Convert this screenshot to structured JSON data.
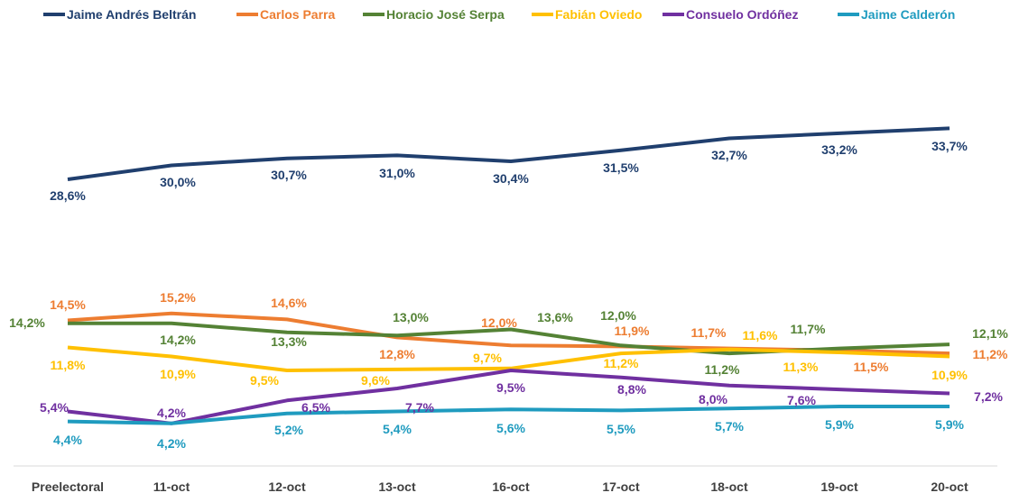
{
  "chart_data": {
    "type": "line",
    "title": "",
    "xlabel": "",
    "ylabel": "",
    "ylim": [
      0,
      35
    ],
    "grid": false,
    "legend_placement": "top",
    "categories": [
      "Preelectoral",
      "11-oct",
      "12-oct",
      "13-oct",
      "16-oct",
      "17-oct",
      "18-oct",
      "19-oct",
      "20-oct"
    ],
    "series": [
      {
        "name": "Jaime Andrés Beltrán",
        "color": "#203f6e",
        "values": [
          28.6,
          30.0,
          30.7,
          31.0,
          30.4,
          31.5,
          32.7,
          33.2,
          33.7
        ],
        "labels": [
          "28,6%",
          "30,0%",
          "30,7%",
          "31,0%",
          "30,4%",
          "31,5%",
          "32,7%",
          "33,2%",
          "33,7%"
        ]
      },
      {
        "name": "Carlos Parra",
        "color": "#ed7d31",
        "values": [
          14.5,
          15.2,
          14.6,
          12.8,
          12.0,
          11.9,
          11.7,
          11.5,
          11.2
        ],
        "labels": [
          "14,5%",
          "15,2%",
          "14,6%",
          "12,8%",
          "12,0%",
          "11,9%",
          "11,7%",
          "11,5%",
          "11,2%"
        ]
      },
      {
        "name": "Horacio José Serpa",
        "color": "#548235",
        "values": [
          14.2,
          14.2,
          13.3,
          13.0,
          13.6,
          12.0,
          11.2,
          11.7,
          12.1
        ],
        "labels": [
          "14,2%",
          "14,2%",
          "13,3%",
          "13,0%",
          "13,6%",
          "12,0%",
          "11,2%",
          "11,7%",
          "12,1%"
        ]
      },
      {
        "name": "Fabián Oviedo",
        "color": "#ffc000",
        "values": [
          11.8,
          10.9,
          9.5,
          9.6,
          9.7,
          11.2,
          11.6,
          11.3,
          10.9
        ],
        "labels": [
          "11,8%",
          "10,9%",
          "9,5%",
          "9,6%",
          "9,7%",
          "11,2%",
          "11,6%",
          "11,3%",
          "10,9%"
        ]
      },
      {
        "name": "Consuelo Ordóñez",
        "color": "#7030a0",
        "values": [
          5.4,
          4.2,
          6.5,
          7.7,
          9.5,
          8.8,
          8.0,
          7.6,
          7.2
        ],
        "labels": [
          "5,4%",
          "4,2%",
          "6,5%",
          "7,7%",
          "9,5%",
          "8,8%",
          "8,0%",
          "7,6%",
          "7,2%"
        ]
      },
      {
        "name": "Jaime Calderón",
        "color": "#1f9bbf",
        "values": [
          4.4,
          4.2,
          5.2,
          5.4,
          5.6,
          5.5,
          5.7,
          5.9,
          5.9
        ],
        "labels": [
          "4,4%",
          "4,2%",
          "5,2%",
          "5,4%",
          "5,6%",
          "5,5%",
          "5,7%",
          "5,9%",
          "5,9%"
        ]
      }
    ]
  }
}
